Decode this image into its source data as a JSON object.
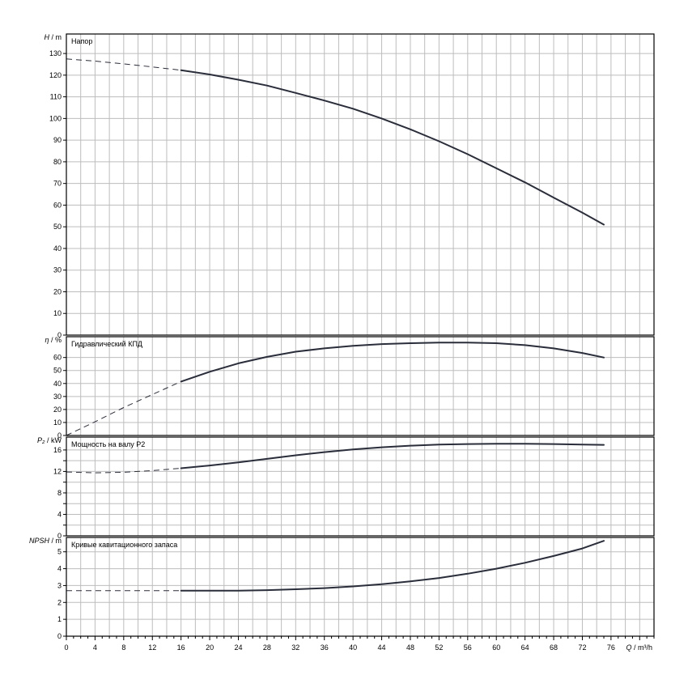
{
  "chart_data": {
    "type": "line",
    "x_axis": {
      "label_symbol": "Q",
      "label_unit": "m³/h",
      "range": [
        0,
        82
      ],
      "ticks": [
        0,
        4,
        8,
        12,
        16,
        20,
        24,
        28,
        32,
        36,
        40,
        44,
        48,
        52,
        56,
        60,
        64,
        68,
        72,
        76
      ],
      "tick_labels": [
        "0",
        "4",
        "8",
        "12",
        "16",
        "20",
        "24",
        "28",
        "32",
        "36",
        "40",
        "44",
        "48",
        "52",
        "56",
        "60",
        "64",
        "68",
        "72",
        "76"
      ]
    },
    "grid": true,
    "panels": [
      {
        "title": "Напор",
        "y_symbol": "H",
        "y_unit": "m",
        "ylim": [
          0,
          139
        ],
        "yticks": [
          0,
          10,
          20,
          30,
          40,
          50,
          60,
          70,
          80,
          90,
          100,
          110,
          120,
          130
        ],
        "ytick_labels": [
          "0",
          "10",
          "20",
          "30",
          "40",
          "50",
          "60",
          "70",
          "80",
          "90",
          "100",
          "110",
          "120",
          "130"
        ],
        "dashed": {
          "x": [
            0,
            4,
            8,
            12,
            16
          ],
          "y": [
            127.5,
            126.5,
            125.2,
            123.8,
            122.3
          ]
        },
        "solid": {
          "x": [
            16,
            20,
            24,
            28,
            32,
            36,
            40,
            44,
            48,
            52,
            56,
            60,
            64,
            68,
            72,
            75
          ],
          "y": [
            122.3,
            120.3,
            117.9,
            115.2,
            111.8,
            108.3,
            104.5,
            100,
            95,
            89.5,
            83.5,
            77,
            70.5,
            63.5,
            56.5,
            51
          ]
        }
      },
      {
        "title": "Гидравлический КПД",
        "y_symbol": "η",
        "y_unit": "%",
        "ylim": [
          0,
          76
        ],
        "yticks": [
          0,
          10,
          20,
          30,
          40,
          50,
          60
        ],
        "ytick_labels": [
          "0",
          "10",
          "20",
          "30",
          "40",
          "50",
          "60"
        ],
        "dashed": {
          "x": [
            0,
            4,
            8,
            12,
            16
          ],
          "y": [
            0,
            10.5,
            21.5,
            31.5,
            41.5
          ]
        },
        "solid": {
          "x": [
            16,
            20,
            24,
            28,
            32,
            36,
            40,
            44,
            48,
            52,
            56,
            60,
            64,
            68,
            72,
            75
          ],
          "y": [
            41.5,
            49,
            55.5,
            60.5,
            64.5,
            67,
            69,
            70.3,
            71,
            71.5,
            71.5,
            71,
            69.5,
            67,
            63.5,
            60
          ]
        }
      },
      {
        "title": "Мощность на валу P2",
        "y_symbol": "P₂",
        "y_unit": "kW",
        "ylim": [
          0,
          18.4
        ],
        "yticks": [
          0,
          2,
          4,
          6,
          8,
          10,
          12,
          14,
          16
        ],
        "ytick_labels": [
          "0",
          "",
          "4",
          "",
          "8",
          "",
          "12",
          "",
          "16"
        ],
        "dashed": {
          "x": [
            0,
            4,
            8,
            12,
            16
          ],
          "y": [
            11.9,
            11.75,
            11.85,
            12.15,
            12.6
          ]
        },
        "solid": {
          "x": [
            16,
            20,
            24,
            28,
            32,
            36,
            40,
            44,
            48,
            52,
            56,
            60,
            64,
            68,
            72,
            75
          ],
          "y": [
            12.6,
            13.1,
            13.7,
            14.35,
            15.0,
            15.6,
            16.1,
            16.5,
            16.8,
            17.0,
            17.1,
            17.15,
            17.15,
            17.1,
            17.0,
            16.95
          ]
        }
      },
      {
        "title": "Кривые кавитационного запаса",
        "y_symbol": "NPSH",
        "y_unit": "m",
        "ylim": [
          0,
          5.85
        ],
        "yticks": [
          0,
          1,
          2,
          3,
          4,
          5
        ],
        "ytick_labels": [
          "0",
          "1",
          "2",
          "3",
          "4",
          "5"
        ],
        "dashed": {
          "x": [
            0,
            16
          ],
          "y": [
            2.7,
            2.7
          ]
        },
        "solid": {
          "x": [
            16,
            20,
            24,
            28,
            32,
            36,
            40,
            44,
            48,
            52,
            56,
            60,
            64,
            68,
            72,
            75
          ],
          "y": [
            2.7,
            2.7,
            2.7,
            2.73,
            2.78,
            2.85,
            2.95,
            3.08,
            3.25,
            3.45,
            3.7,
            4.0,
            4.35,
            4.75,
            5.2,
            5.65
          ]
        }
      }
    ]
  }
}
